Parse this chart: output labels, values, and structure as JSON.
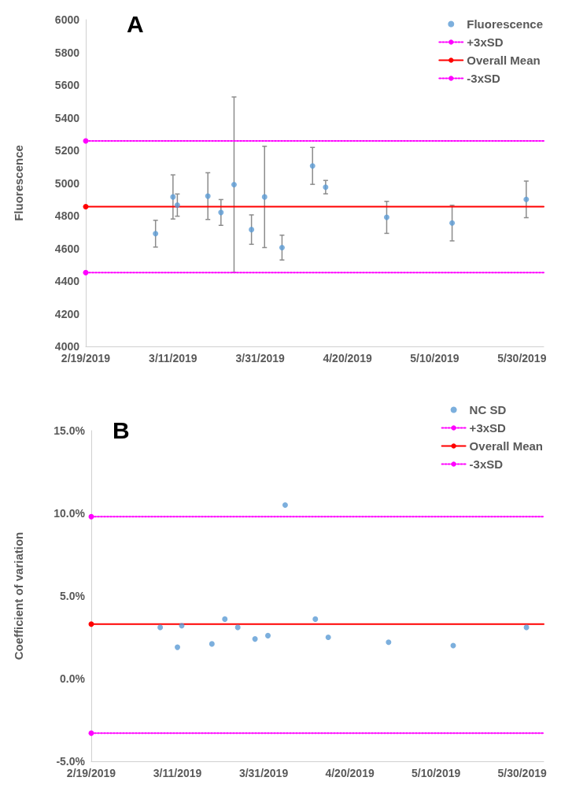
{
  "chart_data": [
    {
      "type": "scatter",
      "title": "A",
      "ylabel": "Fluorescence",
      "legend": "top right",
      "marker": "circle",
      "xlim": [
        "2019-02-19",
        "2019-06-04"
      ],
      "xticks": [
        {
          "value": "2019-02-19",
          "label": "2/19/2019"
        },
        {
          "value": "2019-03-11",
          "label": "3/11/2019"
        },
        {
          "value": "2019-03-31",
          "label": "3/31/2019"
        },
        {
          "value": "2019-04-20",
          "label": "4/20/2019"
        },
        {
          "value": "2019-05-10",
          "label": "5/10/2019"
        },
        {
          "value": "2019-05-30",
          "label": "5/30/2019"
        }
      ],
      "ylim": [
        4000,
        6000
      ],
      "yticks": [
        4000,
        4200,
        4400,
        4600,
        4800,
        5000,
        5200,
        5400,
        5600,
        5800,
        6000
      ],
      "series": [
        {
          "name": "Fluorescence",
          "color": "#5b9bd5",
          "x": [
            "2019-03-07",
            "2019-03-11",
            "2019-03-12",
            "2019-03-19",
            "2019-03-22",
            "2019-03-25",
            "2019-03-29",
            "2019-04-01",
            "2019-04-05",
            "2019-04-12",
            "2019-04-15",
            "2019-04-29",
            "2019-05-14",
            "2019-05-31"
          ],
          "values": [
            4690,
            4915,
            4865,
            4920,
            4820,
            4990,
            4715,
            4915,
            4605,
            5105,
            4975,
            4790,
            4755,
            4900
          ],
          "errors": [
            82,
            135,
            68,
            143,
            79,
            537,
            90,
            310,
            76,
            113,
            41,
            98,
            109,
            112
          ]
        },
        {
          "name": "+3xSD",
          "type": "line",
          "color": "#ff00ff",
          "line_style": "dotted",
          "x": [
            "2019-02-19",
            "2019-06-04"
          ],
          "values": [
            5258,
            5258
          ]
        },
        {
          "name": "Overall Mean",
          "type": "line",
          "color": "#ff0000",
          "line_style": "solid",
          "x": [
            "2019-02-19",
            "2019-06-04"
          ],
          "values": [
            4855,
            4855
          ]
        },
        {
          "name": "-3xSD",
          "type": "line",
          "color": "#ff00ff",
          "line_style": "dotted",
          "x": [
            "2019-02-19",
            "2019-06-04"
          ],
          "values": [
            4452,
            4452
          ]
        }
      ]
    },
    {
      "type": "scatter",
      "title": "B",
      "ylabel": "Coefficient of variation",
      "legend": "top right",
      "marker": "circle",
      "xlim": [
        "2019-02-19",
        "2019-06-04"
      ],
      "xticks": [
        {
          "value": "2019-02-19",
          "label": "2/19/2019"
        },
        {
          "value": "2019-03-11",
          "label": "3/11/2019"
        },
        {
          "value": "2019-03-31",
          "label": "3/31/2019"
        },
        {
          "value": "2019-04-20",
          "label": "4/20/2019"
        },
        {
          "value": "2019-05-10",
          "label": "5/10/2019"
        },
        {
          "value": "2019-05-30",
          "label": "5/30/2019"
        }
      ],
      "ylim": [
        -5,
        15
      ],
      "yticks": [
        {
          "value": -5,
          "label": "-5.0%"
        },
        {
          "value": 0,
          "label": "0.0%"
        },
        {
          "value": 5,
          "label": "5.0%"
        },
        {
          "value": 10,
          "label": "10.0%"
        },
        {
          "value": 15,
          "label": "15.0%"
        }
      ],
      "series": [
        {
          "name": "NC SD",
          "color": "#5b9bd5",
          "x": [
            "2019-03-07",
            "2019-03-11",
            "2019-03-12",
            "2019-03-19",
            "2019-03-22",
            "2019-03-25",
            "2019-03-29",
            "2019-04-01",
            "2019-04-05",
            "2019-04-12",
            "2019-04-15",
            "2019-04-29",
            "2019-05-14",
            "2019-05-31"
          ],
          "values": [
            3.1,
            1.9,
            3.2,
            2.1,
            3.6,
            3.1,
            2.4,
            2.6,
            10.5,
            3.6,
            2.5,
            2.2,
            2.0,
            3.1
          ]
        },
        {
          "name": "+3xSD",
          "type": "line",
          "color": "#ff00ff",
          "line_style": "dotted",
          "x": [
            "2019-02-19",
            "2019-06-04"
          ],
          "values": [
            9.8,
            9.8
          ]
        },
        {
          "name": "Overall Mean",
          "type": "line",
          "color": "#ff0000",
          "line_style": "solid",
          "x": [
            "2019-02-19",
            "2019-06-04"
          ],
          "values": [
            3.3,
            3.3
          ]
        },
        {
          "name": "-3xSD",
          "type": "line",
          "color": "#ff00ff",
          "line_style": "dotted",
          "x": [
            "2019-02-19",
            "2019-06-04"
          ],
          "values": [
            -3.3,
            -3.3
          ]
        }
      ]
    }
  ]
}
